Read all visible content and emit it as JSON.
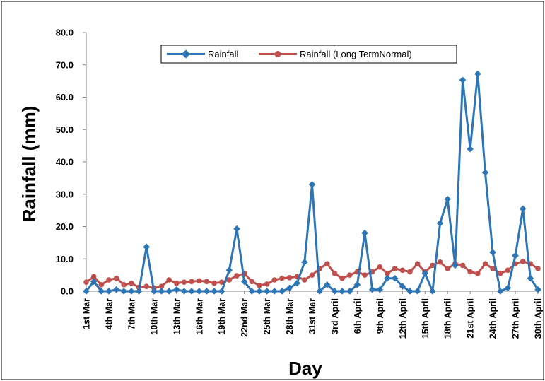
{
  "chart_data": {
    "type": "line",
    "title": "",
    "xlabel": "Day",
    "ylabel": "Rainfall (mm)",
    "ylim": [
      0,
      80
    ],
    "yticks": [
      "0.0",
      "10.0",
      "20.0",
      "30.0",
      "40.0",
      "50.0",
      "60.0",
      "70.0",
      "80.0"
    ],
    "grid": false,
    "legend_position": "top-center",
    "x": [
      "1st Mar",
      "2nd Mar",
      "3rd Mar",
      "4th Mar",
      "5th Mar",
      "6th Mar",
      "7th Mar",
      "8th Mar",
      "9th Mar",
      "10th Mar",
      "11th Mar",
      "12th Mar",
      "13th Mar",
      "14th Mar",
      "15th Mar",
      "16th Mar",
      "17th Mar",
      "18th Mar",
      "19th Mar",
      "20th Mar",
      "21st Mar",
      "22nd Mar",
      "23rd Mar",
      "24th Mar",
      "25th Mar",
      "26th Mar",
      "27th Mar",
      "28th Mar",
      "29th Mar",
      "30th Mar",
      "31st Mar",
      "1st April",
      "2nd April",
      "3rd April",
      "4th April",
      "5th April",
      "6th April",
      "7th April",
      "8th April",
      "9th April",
      "10th April",
      "11th April",
      "12th April",
      "13th April",
      "14th April",
      "15th April",
      "16th April",
      "17th April",
      "18th April",
      "19th April",
      "20th April",
      "21st April",
      "22nd April",
      "23rd April",
      "24th April",
      "25th April",
      "26th April",
      "27th April",
      "28th April",
      "29th April",
      "30th April"
    ],
    "x_tick_labels": [
      {
        "index": 0,
        "label": "1st Mar"
      },
      {
        "index": 3,
        "label": "4th Mar"
      },
      {
        "index": 6,
        "label": "7th Mar"
      },
      {
        "index": 9,
        "label": "10th Mar"
      },
      {
        "index": 12,
        "label": "13th Mar"
      },
      {
        "index": 15,
        "label": "16th Mar"
      },
      {
        "index": 18,
        "label": "19th Mar"
      },
      {
        "index": 21,
        "label": "22nd Mar"
      },
      {
        "index": 24,
        "label": "25th Mar"
      },
      {
        "index": 27,
        "label": "28th Mar"
      },
      {
        "index": 30,
        "label": "31st Mar"
      },
      {
        "index": 33,
        "label": "3rd April"
      },
      {
        "index": 36,
        "label": "6th April"
      },
      {
        "index": 39,
        "label": "9th April"
      },
      {
        "index": 42,
        "label": "12th April"
      },
      {
        "index": 45,
        "label": "15th April"
      },
      {
        "index": 48,
        "label": "18th April"
      },
      {
        "index": 51,
        "label": "21st April"
      },
      {
        "index": 54,
        "label": "24th April"
      },
      {
        "index": 57,
        "label": "27th April"
      },
      {
        "index": 60,
        "label": "30th April"
      }
    ],
    "series": [
      {
        "name": "Rainfall",
        "color": "#2E75B6",
        "marker": "diamond",
        "values": [
          0.0,
          3.0,
          0.0,
          0.0,
          0.5,
          0.0,
          0.0,
          0.0,
          13.7,
          0.0,
          0.0,
          0.0,
          0.5,
          0.0,
          0.0,
          0.0,
          0.0,
          0.0,
          0.0,
          6.5,
          19.3,
          3.0,
          0.0,
          0.0,
          0.0,
          0.0,
          0.0,
          1.0,
          2.5,
          9.0,
          33.0,
          0.0,
          2.0,
          0.0,
          0.0,
          0.0,
          2.0,
          18.0,
          0.5,
          0.5,
          4.0,
          4.0,
          1.5,
          0.0,
          0.0,
          5.5,
          0.0,
          21.0,
          28.5,
          8.0,
          65.3,
          44.0,
          67.2,
          36.7,
          12.0,
          0.0,
          1.0,
          11.0,
          25.5,
          4.0,
          0.5
        ]
      },
      {
        "name": "Rainfall (Long TermNormal)",
        "color": "#C0504D",
        "marker": "circle",
        "values": [
          2.8,
          4.5,
          2.0,
          3.5,
          4.0,
          2.0,
          2.5,
          1.2,
          1.5,
          1.0,
          1.5,
          3.5,
          2.5,
          2.8,
          3.0,
          3.2,
          3.0,
          2.5,
          2.8,
          3.5,
          4.8,
          5.5,
          3.0,
          1.8,
          2.2,
          3.5,
          4.0,
          4.2,
          4.5,
          3.5,
          5.0,
          7.0,
          8.5,
          5.5,
          4.0,
          5.0,
          6.0,
          5.0,
          6.0,
          7.5,
          5.5,
          7.0,
          6.5,
          6.0,
          8.5,
          6.0,
          8.0,
          9.0,
          7.0,
          8.5,
          8.0,
          6.0,
          5.5,
          8.5,
          7.0,
          5.5,
          6.5,
          8.5,
          9.2,
          8.5,
          7.0
        ]
      }
    ]
  }
}
